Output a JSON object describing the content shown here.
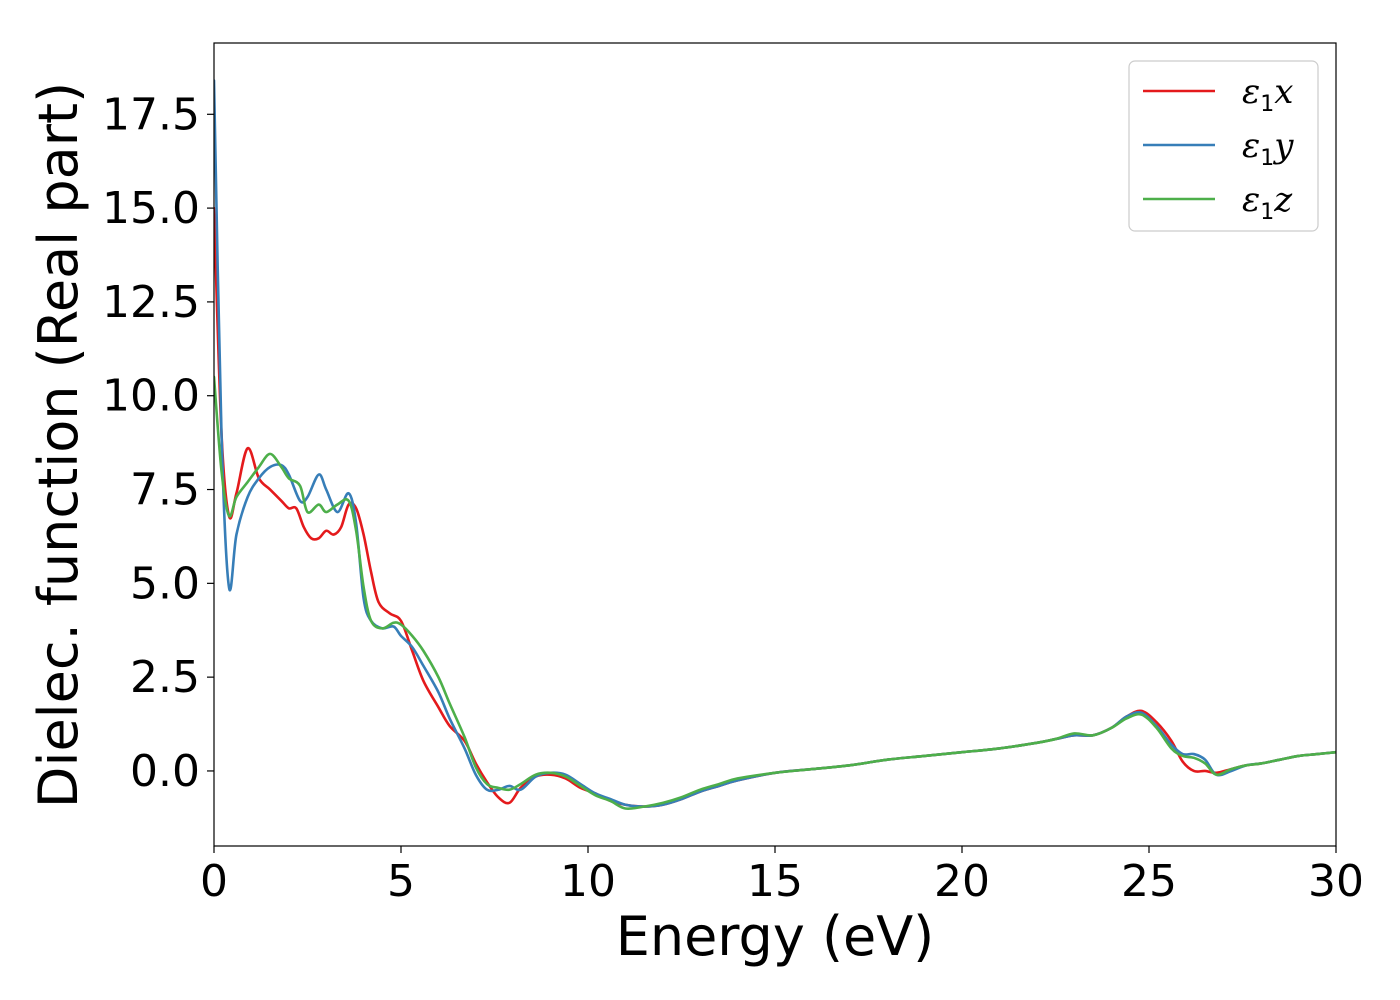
{
  "chart_data": {
    "type": "line",
    "title": "",
    "xlabel": "Energy (eV)",
    "ylabel": "Dielec. function (Real part)",
    "xlim": [
      0,
      30
    ],
    "ylim": [
      -2.0,
      19.4
    ],
    "grid": false,
    "legend_position": "top-right",
    "xticks": [
      0,
      5,
      10,
      15,
      20,
      25,
      30
    ],
    "xtick_labels": [
      "0",
      "5",
      "10",
      "15",
      "20",
      "25",
      "30"
    ],
    "yticks": [
      0,
      2.5,
      5,
      7.5,
      10,
      12.5,
      15,
      17.5
    ],
    "ytick_labels": [
      "0.0",
      "2.5",
      "5.0",
      "7.5",
      "10.0",
      "12.5",
      "15.0",
      "17.5"
    ],
    "series": [
      {
        "name": "ε1x",
        "legend": {
          "symbol": "ε",
          "sub": "1",
          "suffix": "x"
        },
        "color": "#e41a1c",
        "x": [
          0,
          0.2,
          0.4,
          0.6,
          0.9,
          1.2,
          1.5,
          1.8,
          2.0,
          2.2,
          2.4,
          2.6,
          2.8,
          3.0,
          3.2,
          3.4,
          3.6,
          3.8,
          4.0,
          4.2,
          4.4,
          4.7,
          5.0,
          5.3,
          5.6,
          6.0,
          6.3,
          6.7,
          7.0,
          7.3,
          7.6,
          7.9,
          8.2,
          8.6,
          9.0,
          9.4,
          9.8,
          10.2,
          10.6,
          11.0,
          11.5,
          12.0,
          12.5,
          13.0,
          13.5,
          14.0,
          15.0,
          16.0,
          17.0,
          18.0,
          19.0,
          20.0,
          21.0,
          22.0,
          22.5,
          23.0,
          23.5,
          24.0,
          24.4,
          24.8,
          25.2,
          25.6,
          25.9,
          26.2,
          26.5,
          26.8,
          27.2,
          27.6,
          28.0,
          28.5,
          29.0,
          29.5,
          30.0
        ],
        "y": [
          15.0,
          9.0,
          6.8,
          7.4,
          8.6,
          7.8,
          7.5,
          7.2,
          7.0,
          7.0,
          6.5,
          6.2,
          6.2,
          6.4,
          6.3,
          6.5,
          7.1,
          7.0,
          6.3,
          5.3,
          4.5,
          4.2,
          4.0,
          3.2,
          2.4,
          1.7,
          1.2,
          0.8,
          0.2,
          -0.3,
          -0.7,
          -0.85,
          -0.45,
          -0.15,
          -0.1,
          -0.2,
          -0.45,
          -0.6,
          -0.8,
          -0.9,
          -0.95,
          -0.9,
          -0.75,
          -0.55,
          -0.4,
          -0.25,
          -0.05,
          0.05,
          0.15,
          0.3,
          0.4,
          0.5,
          0.6,
          0.75,
          0.85,
          0.95,
          0.95,
          1.15,
          1.45,
          1.6,
          1.3,
          0.8,
          0.25,
          0.0,
          0.0,
          -0.05,
          0.05,
          0.15,
          0.2,
          0.3,
          0.4,
          0.45,
          0.5
        ]
      },
      {
        "name": "ε1y",
        "legend": {
          "symbol": "ε",
          "sub": "1",
          "suffix": "y"
        },
        "color": "#377eb8",
        "x": [
          0,
          0.2,
          0.4,
          0.6,
          0.9,
          1.2,
          1.5,
          1.8,
          2.0,
          2.3,
          2.5,
          2.8,
          3.0,
          3.3,
          3.6,
          3.8,
          4.0,
          4.2,
          4.5,
          4.8,
          5.0,
          5.3,
          5.6,
          6.0,
          6.3,
          6.7,
          7.0,
          7.3,
          7.6,
          7.9,
          8.2,
          8.6,
          9.0,
          9.4,
          9.8,
          10.2,
          10.6,
          11.0,
          11.5,
          12.0,
          12.5,
          13.0,
          13.5,
          14.0,
          15.0,
          16.0,
          17.0,
          18.0,
          19.0,
          20.0,
          21.0,
          22.0,
          22.5,
          23.0,
          23.5,
          24.0,
          24.4,
          24.8,
          25.2,
          25.6,
          25.9,
          26.2,
          26.5,
          26.8,
          27.2,
          27.6,
          28.0,
          28.5,
          29.0,
          29.5,
          30.0
        ],
        "y": [
          18.4,
          9.0,
          4.9,
          6.3,
          7.3,
          7.8,
          8.1,
          8.15,
          7.9,
          7.2,
          7.3,
          7.9,
          7.5,
          6.9,
          7.4,
          6.6,
          4.6,
          4.0,
          3.8,
          3.85,
          3.6,
          3.3,
          2.8,
          2.1,
          1.4,
          0.6,
          -0.1,
          -0.5,
          -0.5,
          -0.4,
          -0.5,
          -0.15,
          -0.05,
          -0.1,
          -0.35,
          -0.6,
          -0.75,
          -0.9,
          -0.95,
          -0.9,
          -0.75,
          -0.55,
          -0.4,
          -0.25,
          -0.05,
          0.05,
          0.15,
          0.3,
          0.4,
          0.5,
          0.6,
          0.75,
          0.85,
          0.95,
          0.95,
          1.15,
          1.45,
          1.55,
          1.2,
          0.7,
          0.45,
          0.45,
          0.3,
          -0.1,
          0.0,
          0.15,
          0.2,
          0.3,
          0.4,
          0.45,
          0.5
        ]
      },
      {
        "name": "ε1z",
        "legend": {
          "symbol": "ε",
          "sub": "1",
          "suffix": "z"
        },
        "color": "#4daf4a",
        "x": [
          0,
          0.2,
          0.4,
          0.6,
          0.9,
          1.2,
          1.5,
          1.8,
          2.0,
          2.3,
          2.5,
          2.8,
          3.0,
          3.3,
          3.6,
          3.8,
          4.0,
          4.2,
          4.5,
          4.8,
          5.0,
          5.3,
          5.6,
          6.0,
          6.3,
          6.7,
          7.0,
          7.3,
          7.6,
          7.9,
          8.2,
          8.6,
          9.0,
          9.4,
          9.8,
          10.2,
          10.6,
          11.0,
          11.5,
          12.0,
          12.5,
          13.0,
          13.5,
          14.0,
          15.0,
          16.0,
          17.0,
          18.0,
          19.0,
          20.0,
          21.0,
          22.0,
          22.5,
          23.0,
          23.5,
          24.0,
          24.4,
          24.8,
          25.2,
          25.6,
          25.9,
          26.2,
          26.5,
          26.8,
          27.2,
          27.6,
          28.0,
          28.5,
          29.0,
          29.5,
          30.0
        ],
        "y": [
          10.5,
          8.0,
          6.8,
          7.3,
          7.7,
          8.1,
          8.45,
          8.1,
          7.8,
          7.6,
          6.9,
          7.1,
          6.9,
          7.1,
          7.2,
          6.4,
          4.9,
          4.0,
          3.8,
          3.95,
          3.9,
          3.6,
          3.2,
          2.5,
          1.8,
          0.9,
          0.1,
          -0.35,
          -0.45,
          -0.5,
          -0.35,
          -0.1,
          -0.05,
          -0.15,
          -0.4,
          -0.65,
          -0.8,
          -1.0,
          -0.95,
          -0.85,
          -0.7,
          -0.5,
          -0.35,
          -0.2,
          -0.05,
          0.05,
          0.15,
          0.3,
          0.4,
          0.5,
          0.6,
          0.75,
          0.85,
          1.0,
          0.95,
          1.15,
          1.4,
          1.5,
          1.15,
          0.6,
          0.4,
          0.35,
          0.2,
          -0.1,
          0.05,
          0.15,
          0.2,
          0.3,
          0.4,
          0.45,
          0.5
        ]
      }
    ]
  }
}
